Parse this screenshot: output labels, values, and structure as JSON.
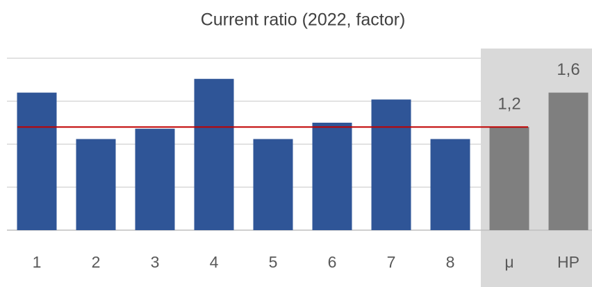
{
  "chart_data": {
    "type": "bar",
    "title": "Current ratio (2022, factor)",
    "categories": [
      "1",
      "2",
      "3",
      "4",
      "5",
      "6",
      "7",
      "8",
      "μ",
      "HP"
    ],
    "values": [
      1.6,
      1.06,
      1.18,
      1.76,
      1.06,
      1.25,
      1.52,
      1.06,
      1.2,
      1.6
    ],
    "value_labels": [
      null,
      null,
      null,
      null,
      null,
      null,
      null,
      null,
      "1,2",
      "1,6"
    ],
    "colors": [
      "#2f5597",
      "#2f5597",
      "#2f5597",
      "#2f5597",
      "#2f5597",
      "#2f5597",
      "#2f5597",
      "#2f5597",
      "#7f7f7f",
      "#7f7f7f"
    ],
    "mean_line": 1.2,
    "mean_line_color": "#c00000",
    "ylim": [
      0,
      2
    ],
    "yticks": [
      0,
      0.5,
      1,
      1.5,
      2
    ],
    "grid": true
  }
}
